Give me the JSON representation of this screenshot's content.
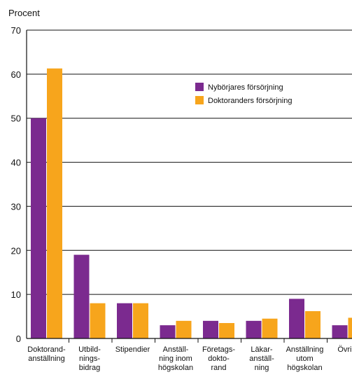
{
  "chart_data": {
    "type": "bar",
    "ylabel": "Procent",
    "ylim": [
      0,
      70
    ],
    "yticks": [
      0,
      10,
      20,
      30,
      40,
      50,
      60,
      70
    ],
    "grid": true,
    "legend_position": "top-right",
    "categories": [
      [
        "Doktorand-",
        "anställning"
      ],
      [
        "Utbild-",
        "nings-",
        "bidrag"
      ],
      [
        "Stipendier"
      ],
      [
        "Anställ-",
        "ning inom",
        "högskolan"
      ],
      [
        "Företags-",
        "dokto-",
        "rand"
      ],
      [
        "Läkar-",
        "anställ-",
        "ning"
      ],
      [
        "Anställning",
        "utom",
        "högskolan"
      ],
      [
        "Övrigt"
      ]
    ],
    "series": [
      {
        "name": "Nybörjares försörjning",
        "color": "#7b2a8f",
        "values": [
          50,
          19,
          8,
          3,
          4,
          4,
          9,
          3
        ]
      },
      {
        "name": "Doktoranders försörjning",
        "color": "#f7a51c",
        "values": [
          61.3,
          8,
          8,
          4,
          3.5,
          4.5,
          6.2,
          4.7
        ]
      }
    ]
  }
}
